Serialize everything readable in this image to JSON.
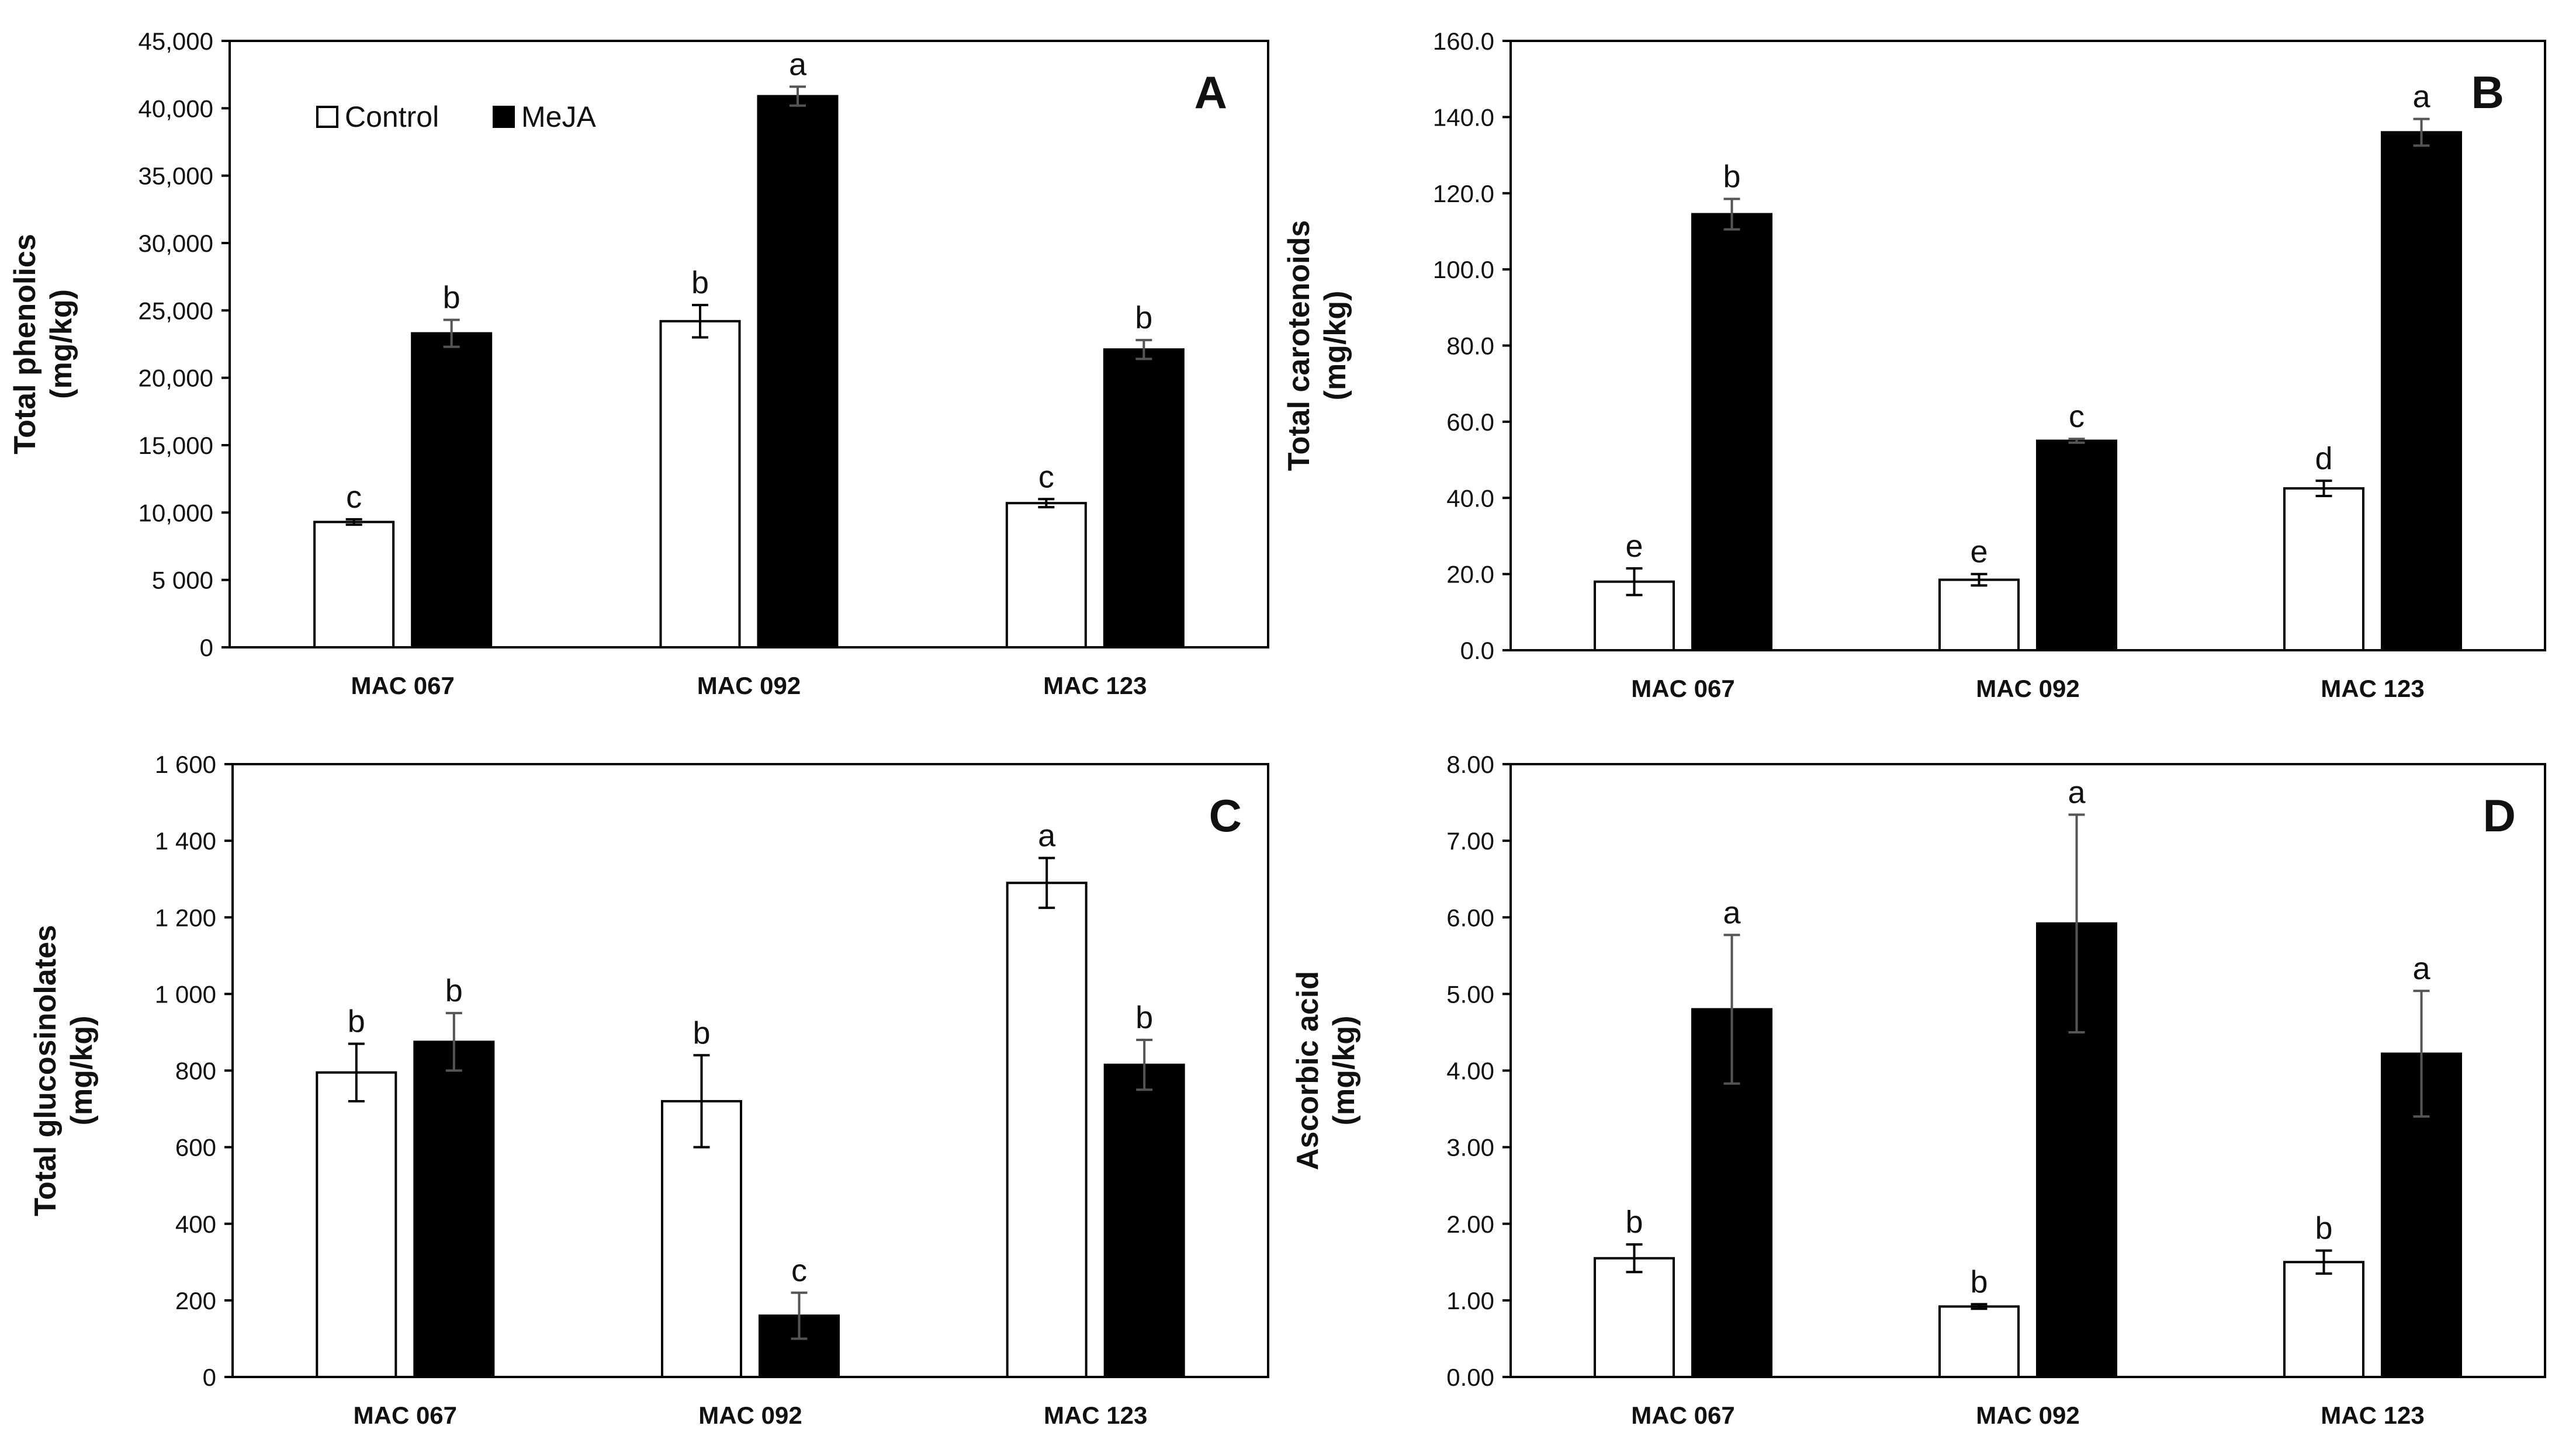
{
  "legend": {
    "control": "Control",
    "meja": "MeJA"
  },
  "colors": {
    "control": "#ffffff",
    "meja": "#000000",
    "stroke": "#000000"
  },
  "chart_data": [
    {
      "type": "bar",
      "panel": "A",
      "ylabel": [
        "Total phenolics",
        "(mg/kg)"
      ],
      "ylim": [
        0,
        45000
      ],
      "yticks": [
        0,
        5000,
        10000,
        15000,
        20000,
        25000,
        30000,
        35000,
        40000,
        45000
      ],
      "ytick_labels": [
        "0",
        "5 000",
        "10,000",
        "15,000",
        "20,000",
        "25,000",
        "30,000",
        "35,000",
        "40,000",
        "45,000"
      ],
      "categories": [
        "MAC 067",
        "MAC 092",
        "MAC 123"
      ],
      "legend": [
        "Control",
        "MeJA"
      ],
      "series": [
        {
          "name": "Control",
          "values": [
            9300,
            24200,
            10700
          ],
          "errors": [
            200,
            1200,
            300
          ],
          "labels": [
            "c",
            "b",
            "c"
          ]
        },
        {
          "name": "MeJA",
          "values": [
            23300,
            40900,
            22100
          ],
          "errors": [
            1000,
            700,
            700
          ],
          "labels": [
            "b",
            "a",
            "b"
          ]
        }
      ]
    },
    {
      "type": "bar",
      "panel": "B",
      "ylabel": [
        "Total carotenoids",
        "(mg/kg)"
      ],
      "ylim": [
        0,
        160
      ],
      "yticks": [
        0,
        20,
        40,
        60,
        80,
        100,
        120,
        140,
        160
      ],
      "ytick_labels": [
        "0.0",
        "20.0",
        "40.0",
        "60.0",
        "80.0",
        "100.0",
        "120.0",
        "140.0",
        "160.0"
      ],
      "categories": [
        "MAC 067",
        "MAC 092",
        "MAC 123"
      ],
      "series": [
        {
          "name": "Control",
          "values": [
            18.0,
            18.5,
            42.5
          ],
          "errors": [
            3.5,
            1.5,
            2.0
          ],
          "labels": [
            "e",
            "e",
            "d"
          ]
        },
        {
          "name": "MeJA",
          "values": [
            114.5,
            55.0,
            136.0
          ],
          "errors": [
            4.0,
            0.5,
            3.5
          ],
          "labels": [
            "b",
            "c",
            "a"
          ]
        }
      ]
    },
    {
      "type": "bar",
      "panel": "C",
      "ylabel": [
        "Total glucosinolates",
        "(mg/kg)"
      ],
      "ylim": [
        0,
        1600
      ],
      "yticks": [
        0,
        200,
        400,
        600,
        800,
        1000,
        1200,
        1400,
        1600
      ],
      "ytick_labels": [
        "0",
        "200",
        "400",
        "600",
        "800",
        "1 000",
        "1 200",
        "1 400",
        "1 600"
      ],
      "categories": [
        "MAC 067",
        "MAC 092",
        "MAC 123"
      ],
      "series": [
        {
          "name": "Control",
          "values": [
            795,
            720,
            1290
          ],
          "errors": [
            75,
            120,
            65
          ],
          "labels": [
            "b",
            "b",
            "a"
          ]
        },
        {
          "name": "MeJA",
          "values": [
            875,
            160,
            815
          ],
          "errors": [
            75,
            60,
            65
          ],
          "labels": [
            "b",
            "c",
            "b"
          ]
        }
      ]
    },
    {
      "type": "bar",
      "panel": "D",
      "ylabel": [
        "Ascorbic acid",
        "(mg/kg)"
      ],
      "ylim": [
        0,
        8
      ],
      "yticks": [
        0,
        1,
        2,
        3,
        4,
        5,
        6,
        7,
        8
      ],
      "ytick_labels": [
        "0.00",
        "1.00",
        "2.00",
        "3.00",
        "4.00",
        "5.00",
        "6.00",
        "7.00",
        "8.00"
      ],
      "categories": [
        "MAC 067",
        "MAC 092",
        "MAC 123"
      ],
      "series": [
        {
          "name": "Control",
          "values": [
            1.55,
            0.92,
            1.5
          ],
          "errors": [
            0.18,
            0.03,
            0.15
          ],
          "labels": [
            "b",
            "b",
            "b"
          ]
        },
        {
          "name": "MeJA",
          "values": [
            4.8,
            5.92,
            4.22
          ],
          "errors": [
            0.97,
            1.42,
            0.82
          ],
          "labels": [
            "a",
            "a",
            "a"
          ]
        }
      ]
    }
  ]
}
